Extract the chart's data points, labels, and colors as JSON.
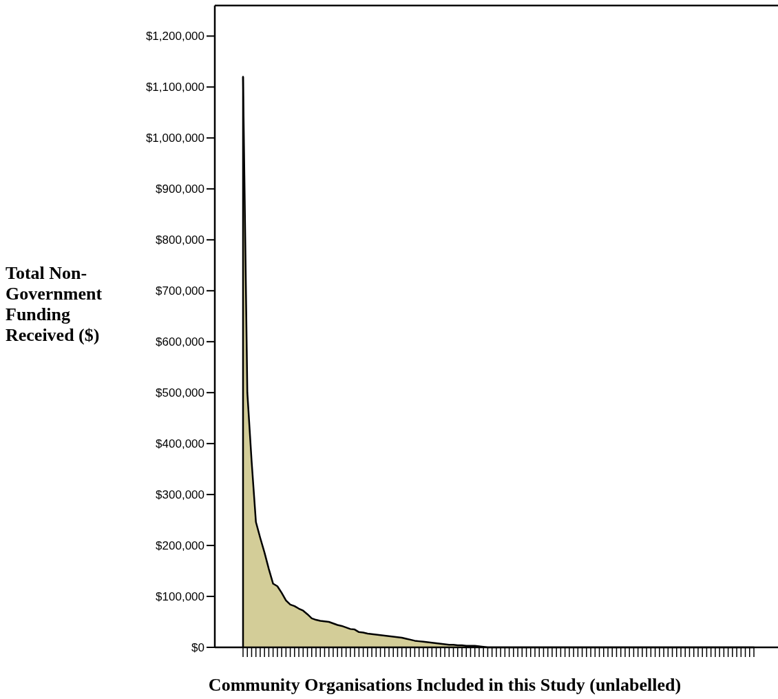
{
  "chart_data": {
    "type": "area",
    "xlabel": "Community Organisations Included in this Study (unlabelled)",
    "ylabel": "Total Non-Government Funding Received ($)",
    "categories": [
      null,
      null,
      null,
      null,
      null,
      null,
      null,
      null,
      null,
      null,
      null,
      null,
      null,
      null,
      null,
      null,
      null,
      null,
      null,
      null,
      null,
      null,
      null,
      null,
      null,
      null,
      null,
      null,
      null,
      null,
      null,
      null,
      null,
      null,
      null,
      null,
      null,
      null,
      null,
      null,
      null,
      null,
      null,
      null,
      null,
      null,
      null,
      null,
      null,
      null,
      null,
      null,
      null,
      null,
      null,
      null,
      null,
      null,
      null,
      null,
      null,
      null,
      null,
      null,
      null,
      null,
      null,
      null,
      null,
      null,
      null,
      null,
      null,
      null,
      null,
      null,
      null,
      null,
      null,
      null,
      null,
      null,
      null,
      null,
      null,
      null,
      null,
      null,
      null,
      null,
      null,
      null,
      null,
      null,
      null,
      null,
      null,
      null,
      null,
      null,
      null,
      null,
      null,
      null,
      null,
      null,
      null,
      null,
      null,
      null,
      null,
      null,
      null,
      null,
      null,
      null,
      null,
      null,
      null,
      null
    ],
    "series": [
      {
        "color": "#d3cd98",
        "values": [
          1120000,
          500000,
          365000,
          246000,
          215000,
          186000,
          154000,
          125000,
          120000,
          107000,
          92000,
          84000,
          81000,
          76000,
          72000,
          65000,
          57000,
          54000,
          52000,
          51000,
          50000,
          47000,
          44000,
          42000,
          39000,
          36000,
          35000,
          30000,
          29000,
          27000,
          26000,
          25000,
          24000,
          23000,
          22000,
          21000,
          20000,
          19000,
          17000,
          15000,
          13000,
          12000,
          11000,
          10000,
          9000,
          8000,
          7000,
          6000,
          5000,
          5000,
          4000,
          4000,
          3000,
          3000,
          3000,
          2000,
          1000,
          0,
          0,
          0,
          0,
          0,
          0,
          0,
          0,
          0,
          0,
          0,
          0,
          0,
          0,
          0,
          0,
          0,
          0,
          0,
          0,
          0,
          0,
          0,
          0,
          0,
          0,
          0,
          0,
          0,
          0,
          0,
          0,
          0,
          0,
          0,
          0,
          0,
          0,
          0,
          0,
          0,
          0,
          0,
          0,
          0,
          0,
          0,
          0,
          0,
          0,
          0,
          0,
          0,
          0,
          0,
          0,
          0,
          0,
          0,
          0,
          0,
          0,
          0
        ]
      }
    ],
    "ylim": [
      0,
      1260000
    ],
    "yticks": [
      {
        "value": 0,
        "label": "$0"
      },
      {
        "value": 100000,
        "label": "$100,000"
      },
      {
        "value": 200000,
        "label": "$200,000"
      },
      {
        "value": 300000,
        "label": "$300,000"
      },
      {
        "value": 400000,
        "label": "$400,000"
      },
      {
        "value": 500000,
        "label": "$500,000"
      },
      {
        "value": 600000,
        "label": "$600,000"
      },
      {
        "value": 700000,
        "label": "$700,000"
      },
      {
        "value": 800000,
        "label": "$800,000"
      },
      {
        "value": 900000,
        "label": "$900,000"
      },
      {
        "value": 1000000,
        "label": "$1,000,000"
      },
      {
        "value": 1100000,
        "label": "$1,100,000"
      },
      {
        "value": 1200000,
        "label": "$1,200,000"
      }
    ],
    "grid": false
  }
}
